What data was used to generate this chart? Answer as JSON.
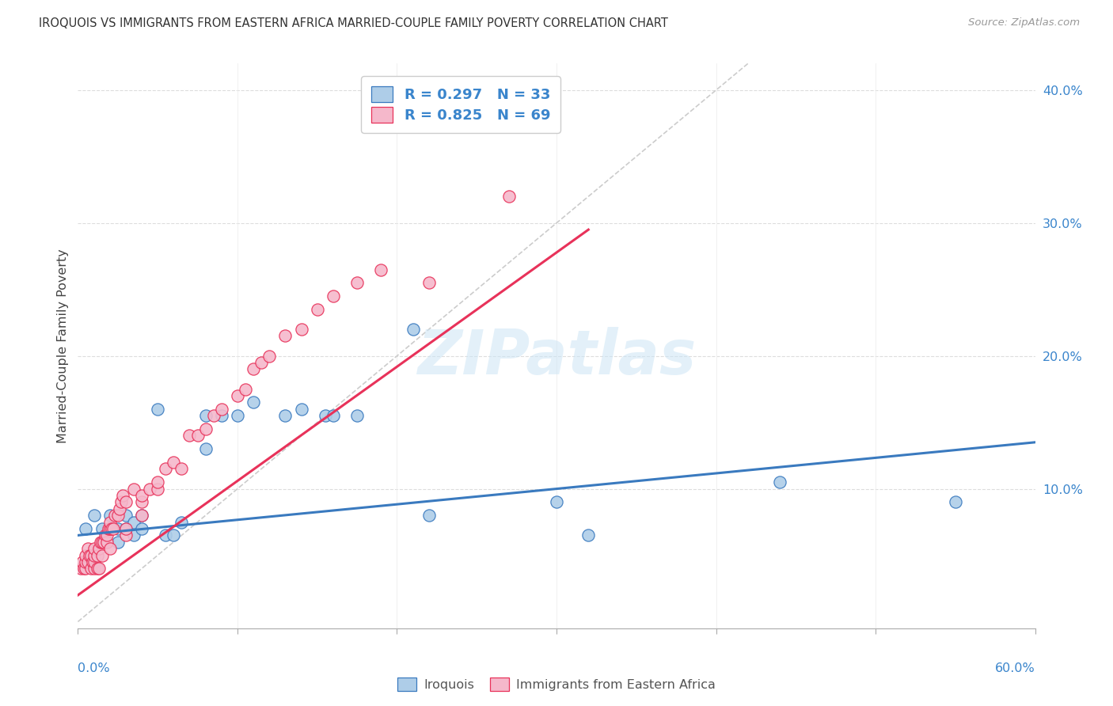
{
  "title": "IROQUOIS VS IMMIGRANTS FROM EASTERN AFRICA MARRIED-COUPLE FAMILY POVERTY CORRELATION CHART",
  "source": "Source: ZipAtlas.com",
  "ylabel": "Married-Couple Family Poverty",
  "xlim": [
    0,
    0.6
  ],
  "ylim": [
    -0.005,
    0.42
  ],
  "yticks": [
    0.0,
    0.1,
    0.2,
    0.3,
    0.4
  ],
  "ytick_labels": [
    "",
    "10.0%",
    "20.0%",
    "30.0%",
    "40.0%"
  ],
  "watermark": "ZIPatlas",
  "blue_R": 0.297,
  "blue_N": 33,
  "pink_R": 0.825,
  "pink_N": 69,
  "blue_color": "#aecde8",
  "pink_color": "#f5b8cb",
  "blue_line_color": "#3a7abf",
  "pink_line_color": "#e8325a",
  "legend_label_blue": "Iroquois",
  "legend_label_pink": "Immigrants from Eastern Africa",
  "blue_line_x0": 0.0,
  "blue_line_y0": 0.065,
  "blue_line_x1": 0.6,
  "blue_line_y1": 0.135,
  "pink_line_x0": 0.0,
  "pink_line_y0": 0.02,
  "pink_line_x1": 0.32,
  "pink_line_y1": 0.295,
  "blue_points_x": [
    0.005,
    0.01,
    0.015,
    0.02,
    0.02,
    0.025,
    0.025,
    0.03,
    0.03,
    0.035,
    0.035,
    0.04,
    0.04,
    0.05,
    0.055,
    0.06,
    0.065,
    0.08,
    0.08,
    0.09,
    0.1,
    0.11,
    0.13,
    0.14,
    0.155,
    0.16,
    0.175,
    0.21,
    0.22,
    0.3,
    0.32,
    0.44,
    0.55
  ],
  "blue_points_y": [
    0.07,
    0.08,
    0.07,
    0.07,
    0.08,
    0.06,
    0.07,
    0.07,
    0.08,
    0.065,
    0.075,
    0.07,
    0.08,
    0.16,
    0.065,
    0.065,
    0.075,
    0.13,
    0.155,
    0.155,
    0.155,
    0.165,
    0.155,
    0.16,
    0.155,
    0.155,
    0.155,
    0.22,
    0.08,
    0.09,
    0.065,
    0.105,
    0.09
  ],
  "pink_points_x": [
    0.002,
    0.003,
    0.004,
    0.005,
    0.005,
    0.005,
    0.006,
    0.006,
    0.007,
    0.008,
    0.008,
    0.009,
    0.01,
    0.01,
    0.01,
    0.01,
    0.012,
    0.012,
    0.013,
    0.013,
    0.014,
    0.015,
    0.015,
    0.016,
    0.017,
    0.018,
    0.018,
    0.019,
    0.02,
    0.02,
    0.02,
    0.021,
    0.022,
    0.023,
    0.025,
    0.026,
    0.027,
    0.028,
    0.03,
    0.03,
    0.03,
    0.035,
    0.04,
    0.04,
    0.04,
    0.045,
    0.05,
    0.05,
    0.055,
    0.06,
    0.065,
    0.07,
    0.075,
    0.08,
    0.085,
    0.09,
    0.1,
    0.105,
    0.11,
    0.115,
    0.12,
    0.13,
    0.14,
    0.15,
    0.16,
    0.175,
    0.19,
    0.22,
    0.27
  ],
  "pink_points_y": [
    0.04,
    0.045,
    0.04,
    0.04,
    0.045,
    0.05,
    0.045,
    0.055,
    0.05,
    0.04,
    0.05,
    0.045,
    0.04,
    0.045,
    0.05,
    0.055,
    0.04,
    0.05,
    0.04,
    0.055,
    0.06,
    0.05,
    0.06,
    0.06,
    0.065,
    0.06,
    0.065,
    0.07,
    0.055,
    0.07,
    0.075,
    0.07,
    0.07,
    0.08,
    0.08,
    0.085,
    0.09,
    0.095,
    0.065,
    0.07,
    0.09,
    0.1,
    0.08,
    0.09,
    0.095,
    0.1,
    0.1,
    0.105,
    0.115,
    0.12,
    0.115,
    0.14,
    0.14,
    0.145,
    0.155,
    0.16,
    0.17,
    0.175,
    0.19,
    0.195,
    0.2,
    0.215,
    0.22,
    0.235,
    0.245,
    0.255,
    0.265,
    0.255,
    0.32
  ]
}
